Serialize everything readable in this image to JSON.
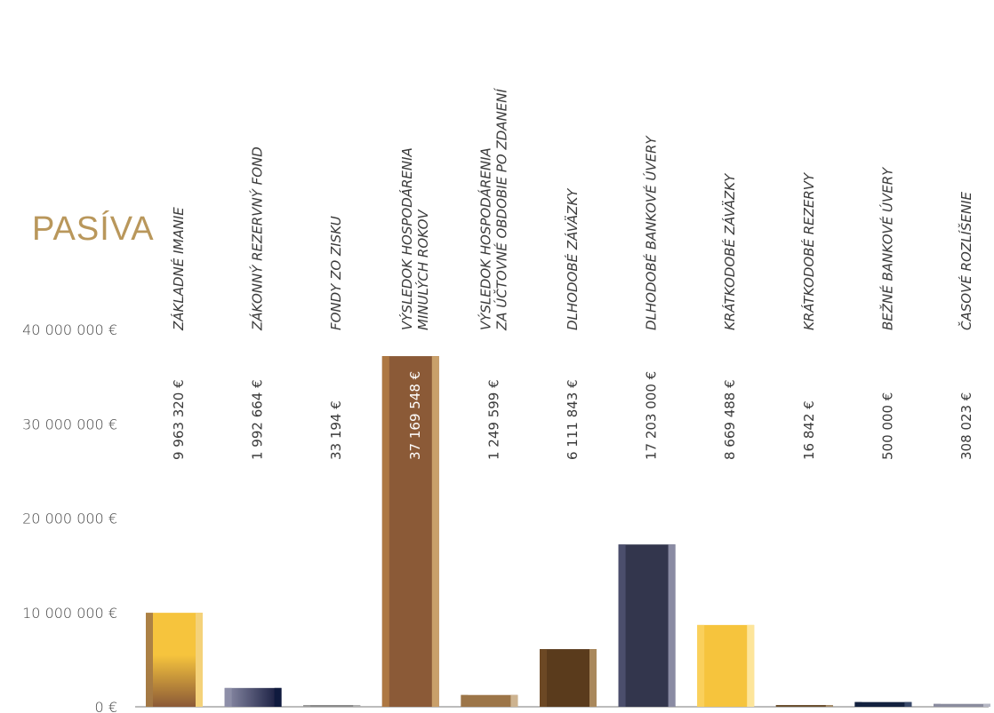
{
  "chart_data": {
    "type": "bar",
    "title": "PASÍVA",
    "xlabel": "",
    "ylabel": "",
    "ylim": [
      0,
      40000000
    ],
    "y_ticks": [
      "0 €",
      "10 000 000  €",
      "20 000 000  €",
      "30 000 000  €",
      "40 000 000  €"
    ],
    "grid": false,
    "categories": [
      [
        "ZÁKLADNÉ IMANIE"
      ],
      [
        "ZÁKONNÝ REZERVNÝ FOND"
      ],
      [
        "FONDY ZO ZISKU"
      ],
      [
        "VÝSLEDOK HOSPODÁRENIA",
        "MINULÝCH ROKOV"
      ],
      [
        "VÝSLEDOK HOSPODÁRENIA",
        "ZA ÚČTOVNÉ OBDOBIE PO ZDANENÍ"
      ],
      [
        "DLHODOBÉ ZÁVÄZKY"
      ],
      [
        "DLHODOBÉ BANKOVÉ ÚVERY"
      ],
      [
        "KRÁTKODOBÉ ZÁVÄZKY"
      ],
      [
        "KRÁTKODOBÉ REZERVY"
      ],
      [
        "BEŽNÉ BANKOVÉ ÚVERY"
      ],
      [
        "ČASOVÉ ROZLÍŠENIE"
      ]
    ],
    "values": [
      9963320,
      1992664,
      33194,
      37169548,
      1249599,
      6111843,
      17203000,
      8669488,
      16842,
      500000,
      308023
    ],
    "value_labels": [
      "9 963 320 €",
      "1 992 664 €",
      "33 194 €",
      "37 169 548 €",
      "1 249 599 €",
      "6 111 843 €",
      "17 203 000 €",
      "8 669 488 €",
      "16 842 €",
      "500 000 €",
      "308 023 €"
    ],
    "colors": [
      {
        "type": "gradient",
        "stops": [
          "#f6c43d",
          "#8b5a37"
        ],
        "left": "#a47a46",
        "right": "#f4d27a"
      },
      {
        "type": "hgradient",
        "stops": [
          "#8e8fa9",
          "#11163a"
        ],
        "left": "#8e8fa9",
        "right": "#0f1a3e"
      },
      {
        "type": "solid",
        "fill": "#8a8a8a",
        "left": "#9a9a9a",
        "right": "#b0b0b0"
      },
      {
        "type": "solid",
        "fill": "#8b5a37",
        "left": "#b07a44",
        "right": "#c9a06a"
      },
      {
        "type": "solid",
        "fill": "#9c7548",
        "left": "#9c7548",
        "right": "#cdb390"
      },
      {
        "type": "solid",
        "fill": "#5a3b1c",
        "left": "#6e4a26",
        "right": "#a9885c"
      },
      {
        "type": "solid",
        "fill": "#33364d",
        "left": "#4e5170",
        "right": "#8a8ba3"
      },
      {
        "type": "solid",
        "fill": "#f6c43d",
        "left": "#fbd25e",
        "right": "#fde59a"
      },
      {
        "type": "solid",
        "fill": "#6b5030",
        "left": "#6b5030",
        "right": "#a48c6a"
      },
      {
        "type": "solid",
        "fill": "#13213f",
        "left": "#13213f",
        "right": "#3a4a6a"
      },
      {
        "type": "solid",
        "fill": "#8a8c9e",
        "left": "#8a8c9e",
        "right": "#b5b7c4"
      }
    ]
  }
}
